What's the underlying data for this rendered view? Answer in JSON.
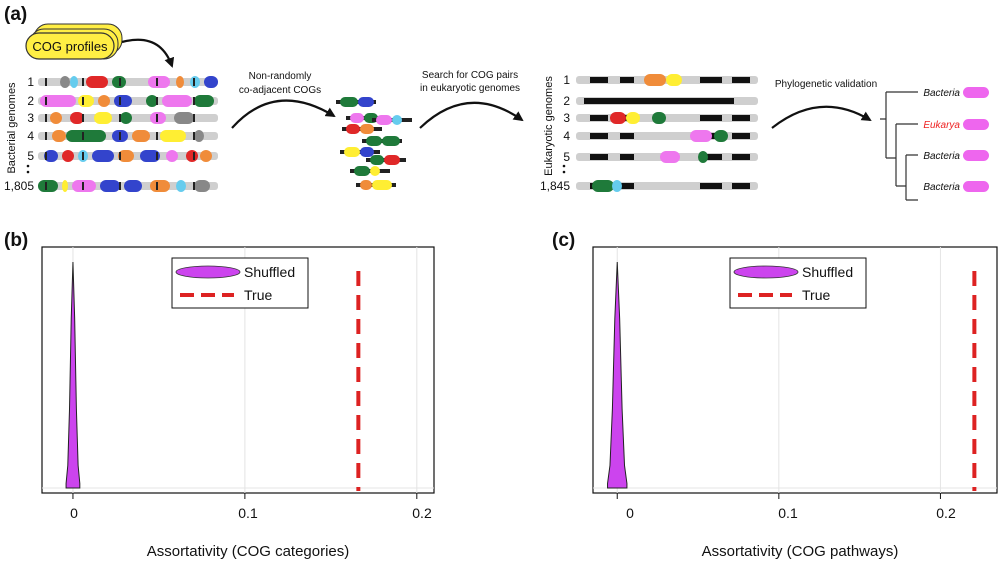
{
  "panel_a": {
    "label": "(a)",
    "cog_profiles": "COG profiles",
    "bacterial_axis": "Bacterial genomes",
    "eukaryotic_axis": "Eukaryotic genomes",
    "step1": [
      "Non-randomly",
      "co-adjacent COGs"
    ],
    "step2": [
      "Search for COG pairs",
      "in eukaryotic  genomes"
    ],
    "step3": "Phylogenetic validation",
    "bacterial_rows": [
      "1",
      "2",
      "3",
      "4",
      "5",
      "1,805"
    ],
    "eukaryotic_rows": [
      "1",
      "2",
      "3",
      "4",
      "5",
      "1,845"
    ],
    "tree_leaves": [
      "Bacteria",
      "Eukarya",
      "Bacteria",
      "Bacteria"
    ],
    "colors": {
      "cog": [
        "#e02828",
        "#ffee33",
        "#1f7a3a",
        "#3344cc",
        "#ee77ee",
        "#f08c3a",
        "#66ccee",
        "#888888"
      ],
      "eukarya": "#ee2222",
      "pink": "#ee66ee"
    }
  },
  "panels": [
    {
      "label": "(b)",
      "legend": [
        "Shuffled",
        "True"
      ],
      "ticks": [
        "0",
        "0.1",
        "0.2"
      ],
      "xlabel": "Assortativity (COG categories)"
    },
    {
      "label": "(c)",
      "legend": [
        "Shuffled",
        "True"
      ],
      "ticks": [
        "0",
        "0.1",
        "0.2"
      ],
      "xlabel": "Assortativity (COG pathways)"
    }
  ],
  "chart_data": [
    {
      "type": "area",
      "title": "",
      "xlabel": "Assortativity (COG categories)",
      "ylabel": "",
      "xlim": [
        -0.018,
        0.21
      ],
      "xticks": [
        0,
        0.1,
        0.2
      ],
      "grid": true,
      "legend_placement": "top",
      "series": [
        {
          "name": "Shuffled",
          "kind": "density",
          "x": [
            -0.004,
            -0.003,
            -0.002,
            -0.001,
            0,
            0.001,
            0.002,
            0.003,
            0.004
          ],
          "y": [
            0.02,
            0.1,
            0.35,
            0.75,
            1.0,
            0.75,
            0.35,
            0.1,
            0.02
          ],
          "color": "#cc44ee"
        },
        {
          "name": "True",
          "kind": "vline",
          "x": 0.166,
          "color": "#dd2222"
        }
      ]
    },
    {
      "type": "area",
      "title": "",
      "xlabel": "Assortativity (COG pathways)",
      "ylabel": "",
      "xlim": [
        -0.015,
        0.235
      ],
      "xticks": [
        0,
        0.1,
        0.2
      ],
      "grid": true,
      "legend_placement": "top",
      "series": [
        {
          "name": "Shuffled",
          "kind": "density",
          "x": [
            -0.006,
            -0.0045,
            -0.003,
            -0.0015,
            0,
            0.0015,
            0.003,
            0.0045,
            0.006
          ],
          "y": [
            0.02,
            0.1,
            0.35,
            0.75,
            1.0,
            0.75,
            0.35,
            0.1,
            0.02
          ],
          "color": "#cc44ee"
        },
        {
          "name": "True",
          "kind": "vline",
          "x": 0.221,
          "color": "#dd2222"
        }
      ]
    }
  ]
}
